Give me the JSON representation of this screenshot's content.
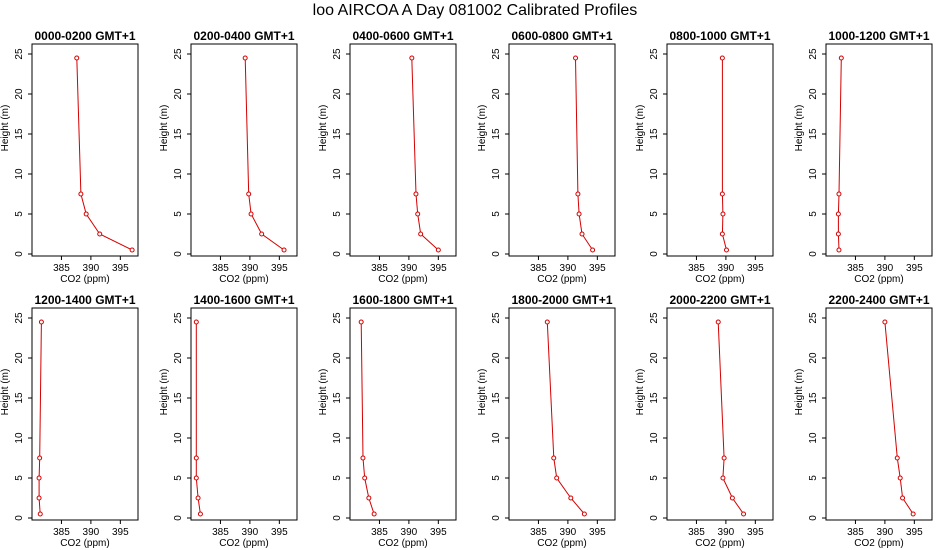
{
  "page_title": "loo AIRCOA A  Day 081002  Calibrated Profiles",
  "colors": {
    "series": "#d40000",
    "axis": "#000000"
  },
  "chart_data": [
    {
      "type": "line",
      "title": "0000-0200 GMT+1",
      "xlabel": "CO2 (ppm)",
      "ylabel": "Height (m)",
      "xlim": [
        380,
        398
      ],
      "ylim": [
        0,
        25
      ],
      "xticks": [
        385,
        390,
        395
      ],
      "yticks": [
        0,
        5,
        10,
        15,
        20,
        25
      ],
      "points": [
        {
          "x": 397.0,
          "y": 0.5
        },
        {
          "x": 391.5,
          "y": 2.5
        },
        {
          "x": 389.2,
          "y": 5
        },
        {
          "x": 388.3,
          "y": 7.5
        },
        {
          "x": 387.6,
          "y": 24.5
        }
      ]
    },
    {
      "type": "line",
      "title": "0200-0400 GMT+1",
      "xlabel": "CO2 (ppm)",
      "ylabel": "Height (m)",
      "xlim": [
        380,
        398
      ],
      "ylim": [
        0,
        25
      ],
      "xticks": [
        385,
        390,
        395
      ],
      "yticks": [
        0,
        5,
        10,
        15,
        20,
        25
      ],
      "points": [
        {
          "x": 395.8,
          "y": 0.5
        },
        {
          "x": 392.0,
          "y": 2.5
        },
        {
          "x": 390.2,
          "y": 5
        },
        {
          "x": 389.8,
          "y": 7.5
        },
        {
          "x": 389.2,
          "y": 24.5
        }
      ]
    },
    {
      "type": "line",
      "title": "0400-0600 GMT+1",
      "xlabel": "CO2 (ppm)",
      "ylabel": "Height (m)",
      "xlim": [
        380,
        398
      ],
      "ylim": [
        0,
        25
      ],
      "xticks": [
        385,
        390,
        395
      ],
      "yticks": [
        0,
        5,
        10,
        15,
        20,
        25
      ],
      "points": [
        {
          "x": 395.0,
          "y": 0.5
        },
        {
          "x": 392.0,
          "y": 2.5
        },
        {
          "x": 391.5,
          "y": 5
        },
        {
          "x": 391.2,
          "y": 7.5
        },
        {
          "x": 390.5,
          "y": 24.5
        }
      ]
    },
    {
      "type": "line",
      "title": "0600-0800 GMT+1",
      "xlabel": "CO2 (ppm)",
      "ylabel": "Height (m)",
      "xlim": [
        380,
        398
      ],
      "ylim": [
        0,
        25
      ],
      "xticks": [
        385,
        390,
        395
      ],
      "yticks": [
        0,
        5,
        10,
        15,
        20,
        25
      ],
      "points": [
        {
          "x": 394.2,
          "y": 0.5
        },
        {
          "x": 392.4,
          "y": 2.5
        },
        {
          "x": 391.9,
          "y": 5
        },
        {
          "x": 391.7,
          "y": 7.5
        },
        {
          "x": 391.3,
          "y": 24.5
        }
      ]
    },
    {
      "type": "line",
      "title": "0800-1000 GMT+1",
      "xlabel": "CO2 (ppm)",
      "ylabel": "Height (m)",
      "xlim": [
        380,
        398
      ],
      "ylim": [
        0,
        25
      ],
      "xticks": [
        385,
        390,
        395
      ],
      "yticks": [
        0,
        5,
        10,
        15,
        20,
        25
      ],
      "points": [
        {
          "x": 390.1,
          "y": 0.5
        },
        {
          "x": 389.4,
          "y": 2.5
        },
        {
          "x": 389.5,
          "y": 5
        },
        {
          "x": 389.4,
          "y": 7.5
        },
        {
          "x": 389.4,
          "y": 24.5
        }
      ]
    },
    {
      "type": "line",
      "title": "1000-1200 GMT+1",
      "xlabel": "CO2 (ppm)",
      "ylabel": "Height (m)",
      "xlim": [
        380,
        398
      ],
      "ylim": [
        0,
        25
      ],
      "xticks": [
        385,
        390,
        395
      ],
      "yticks": [
        0,
        5,
        10,
        15,
        20,
        25
      ],
      "points": [
        {
          "x": 382.2,
          "y": 0.5
        },
        {
          "x": 382.1,
          "y": 2.5
        },
        {
          "x": 382.1,
          "y": 5
        },
        {
          "x": 382.2,
          "y": 7.5
        },
        {
          "x": 382.6,
          "y": 24.5
        }
      ]
    },
    {
      "type": "line",
      "title": "1200-1400 GMT+1",
      "xlabel": "CO2 (ppm)",
      "ylabel": "Height (m)",
      "xlim": [
        380,
        398
      ],
      "ylim": [
        0,
        25
      ],
      "xticks": [
        385,
        390,
        395
      ],
      "yticks": [
        0,
        5,
        10,
        15,
        20,
        25
      ],
      "points": [
        {
          "x": 381.4,
          "y": 0.5
        },
        {
          "x": 381.2,
          "y": 2.5
        },
        {
          "x": 381.2,
          "y": 5
        },
        {
          "x": 381.3,
          "y": 7.5
        },
        {
          "x": 381.6,
          "y": 24.5
        }
      ]
    },
    {
      "type": "line",
      "title": "1400-1600 GMT+1",
      "xlabel": "CO2 (ppm)",
      "ylabel": "Height (m)",
      "xlim": [
        380,
        398
      ],
      "ylim": [
        0,
        25
      ],
      "xticks": [
        385,
        390,
        395
      ],
      "yticks": [
        0,
        5,
        10,
        15,
        20,
        25
      ],
      "points": [
        {
          "x": 381.6,
          "y": 0.5
        },
        {
          "x": 381.2,
          "y": 2.5
        },
        {
          "x": 380.9,
          "y": 5
        },
        {
          "x": 380.9,
          "y": 7.5
        },
        {
          "x": 380.9,
          "y": 24.5
        }
      ]
    },
    {
      "type": "line",
      "title": "1600-1800 GMT+1",
      "xlabel": "CO2 (ppm)",
      "ylabel": "Height (m)",
      "xlim": [
        380,
        398
      ],
      "ylim": [
        0,
        25
      ],
      "xticks": [
        385,
        390,
        395
      ],
      "yticks": [
        0,
        5,
        10,
        15,
        20,
        25
      ],
      "points": [
        {
          "x": 384.1,
          "y": 0.5
        },
        {
          "x": 383.2,
          "y": 2.5
        },
        {
          "x": 382.5,
          "y": 5
        },
        {
          "x": 382.2,
          "y": 7.5
        },
        {
          "x": 381.9,
          "y": 24.5
        }
      ]
    },
    {
      "type": "line",
      "title": "1800-2000 GMT+1",
      "xlabel": "CO2 (ppm)",
      "ylabel": "Height (m)",
      "xlim": [
        380,
        398
      ],
      "ylim": [
        0,
        25
      ],
      "xticks": [
        385,
        390,
        395
      ],
      "yticks": [
        0,
        5,
        10,
        15,
        20,
        25
      ],
      "points": [
        {
          "x": 392.8,
          "y": 0.5
        },
        {
          "x": 390.5,
          "y": 2.5
        },
        {
          "x": 388.1,
          "y": 5
        },
        {
          "x": 387.6,
          "y": 7.5
        },
        {
          "x": 386.5,
          "y": 24.5
        }
      ]
    },
    {
      "type": "line",
      "title": "2000-2200 GMT+1",
      "xlabel": "CO2 (ppm)",
      "ylabel": "Height (m)",
      "xlim": [
        380,
        398
      ],
      "ylim": [
        0,
        25
      ],
      "xticks": [
        385,
        390,
        395
      ],
      "yticks": [
        0,
        5,
        10,
        15,
        20,
        25
      ],
      "points": [
        {
          "x": 393.0,
          "y": 0.5
        },
        {
          "x": 391.1,
          "y": 2.5
        },
        {
          "x": 389.5,
          "y": 5
        },
        {
          "x": 389.7,
          "y": 7.5
        },
        {
          "x": 388.7,
          "y": 24.5
        }
      ]
    },
    {
      "type": "line",
      "title": "2200-2400 GMT+1",
      "xlabel": "CO2 (ppm)",
      "ylabel": "Height (m)",
      "xlim": [
        380,
        398
      ],
      "ylim": [
        0,
        25
      ],
      "xticks": [
        385,
        390,
        395
      ],
      "yticks": [
        0,
        5,
        10,
        15,
        20,
        25
      ],
      "points": [
        {
          "x": 394.8,
          "y": 0.5
        },
        {
          "x": 393.0,
          "y": 2.5
        },
        {
          "x": 392.6,
          "y": 5
        },
        {
          "x": 392.1,
          "y": 7.5
        },
        {
          "x": 390.0,
          "y": 24.5
        }
      ]
    }
  ]
}
